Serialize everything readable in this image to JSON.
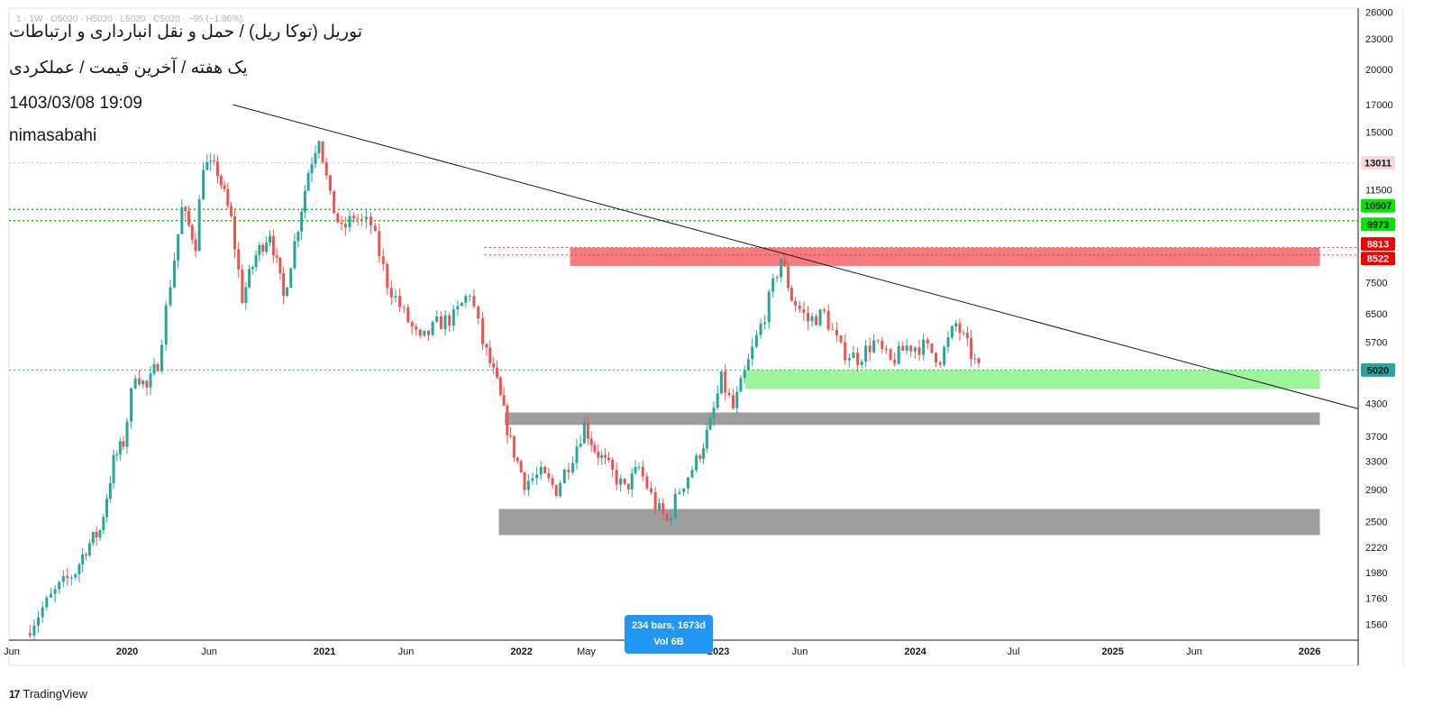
{
  "header": {
    "ohlc_line": "1 · 1W · O5020 · H5020 · L5020 · C5020 · −95 (−1.86%)",
    "title": "توریل (توکا ریل) / حمل و نقل انبارداری و ارتباطات",
    "subtitle": "یک هفته / آخرین قیمت / عملکردی",
    "datetime": "1403/03/08 19:09",
    "author": "nimasabahi"
  },
  "range_box": {
    "line1": "234 bars, 1673d",
    "line2": "Vol 6B"
  },
  "brand": {
    "logo": "17",
    "name": "TradingView"
  },
  "colors": {
    "up": "#26a69a",
    "down": "#ef5350",
    "trend": "#131722",
    "resistance": "#f23645",
    "support": "#00c853",
    "zone_gray": "#9e9e9e",
    "zone_red": "#f77c80",
    "zone_green": "#9df59a"
  },
  "chart_data": {
    "type": "candlestick",
    "title": "توریل (توکا ریل) / حمل و نقل انبارداری و ارتباطات",
    "x_range": [
      "2019-05-27",
      "2026-04-01"
    ],
    "y_range": [
      1450,
      26500
    ],
    "y_scale": "log",
    "y_ticks": [
      26000,
      23000,
      20000,
      17000,
      15000,
      11500,
      7500,
      6500,
      5700,
      4300,
      3700,
      3300,
      2900,
      2500,
      2220,
      1980,
      1760,
      1560
    ],
    "x_ticks": [
      {
        "label": "Jun",
        "date": "2019-06-01"
      },
      {
        "label": "2020",
        "date": "2020-01-01"
      },
      {
        "label": "Jun",
        "date": "2020-06-01"
      },
      {
        "label": "2021",
        "date": "2021-01-01"
      },
      {
        "label": "Jun",
        "date": "2021-06-01"
      },
      {
        "label": "2022",
        "date": "2022-01-01"
      },
      {
        "label": "May",
        "date": "2022-05-01"
      },
      {
        "label": "2023",
        "date": "2023-01-01"
      },
      {
        "label": "Jun",
        "date": "2023-06-01"
      },
      {
        "label": "2024",
        "date": "2024-01-01"
      },
      {
        "label": "Jul",
        "date": "2024-07-01"
      },
      {
        "label": "2025",
        "date": "2025-01-01"
      },
      {
        "label": "Jun",
        "date": "2025-06-01"
      },
      {
        "label": "2026",
        "date": "2026-01-01"
      }
    ],
    "price_labels": [
      {
        "value": 13011,
        "text": "13011",
        "bg": "#f8d7d7",
        "fg": "#131722"
      },
      {
        "value": 10507,
        "text": "10507",
        "bg": "#00e600",
        "fg": "#131722"
      },
      {
        "value": 9973,
        "text": "9973",
        "bg": "#00e600",
        "fg": "#131722"
      },
      {
        "value": 8813,
        "text": "8813",
        "bg": "#f00000",
        "fg": "#ffffff"
      },
      {
        "value": 8522,
        "text": "8522",
        "bg": "#f00000",
        "fg": "#ffffff"
      },
      {
        "value": 5020,
        "text": "5020",
        "bg": "#26a69a",
        "fg": "#131722"
      }
    ],
    "horizontal_lines": [
      {
        "value": 13011,
        "color": "#f4b0b0",
        "from": "2019-05-27"
      },
      {
        "value": 10507,
        "color": "#00c800",
        "from": "2019-05-27"
      },
      {
        "value": 9973,
        "color": "#00c800",
        "from": "2019-05-27"
      },
      {
        "value": 8813,
        "color": "#e53935",
        "from": "2021-10-25"
      },
      {
        "value": 8522,
        "color": "#e53935",
        "from": "2021-10-25"
      },
      {
        "value": 5020,
        "color": "#26a69a",
        "from": "2019-05-27"
      }
    ],
    "zones": [
      {
        "from": "2022-04-01",
        "to": "2026-01-20",
        "low": 8100,
        "high": 8813,
        "color": "#f77c80"
      },
      {
        "from": "2023-02-20",
        "to": "2026-01-20",
        "low": 4600,
        "high": 5020,
        "color": "#9df59a"
      },
      {
        "from": "2021-12-01",
        "to": "2026-01-20",
        "low": 3900,
        "high": 4130,
        "color": "#9e9e9e"
      },
      {
        "from": "2021-11-20",
        "to": "2026-01-20",
        "low": 2350,
        "high": 2650,
        "color": "#9e9e9e"
      }
    ],
    "trendline": {
      "from": {
        "date": "2020-07-15",
        "value": 17000
      },
      "to": {
        "date": "2026-04-01",
        "value": 4200
      }
    },
    "series": [
      {
        "name": "Close (weekly, approximate)",
        "points": [
          {
            "date": "2019-07-01",
            "value": 1500
          },
          {
            "date": "2019-08-01",
            "value": 1680
          },
          {
            "date": "2019-09-01",
            "value": 1850
          },
          {
            "date": "2019-10-01",
            "value": 1990
          },
          {
            "date": "2019-10-20",
            "value": 2220
          },
          {
            "date": "2019-11-15",
            "value": 2400
          },
          {
            "date": "2019-12-10",
            "value": 3300
          },
          {
            "date": "2019-12-28",
            "value": 3600
          },
          {
            "date": "2020-01-20",
            "value": 5000
          },
          {
            "date": "2020-02-10",
            "value": 4600
          },
          {
            "date": "2020-03-01",
            "value": 5200
          },
          {
            "date": "2020-03-25",
            "value": 7500
          },
          {
            "date": "2020-04-15",
            "value": 10500
          },
          {
            "date": "2020-05-10",
            "value": 9000
          },
          {
            "date": "2020-05-25",
            "value": 13000
          },
          {
            "date": "2020-06-20",
            "value": 12500
          },
          {
            "date": "2020-07-15",
            "value": 10000
          },
          {
            "date": "2020-08-05",
            "value": 7000
          },
          {
            "date": "2020-08-30",
            "value": 8500
          },
          {
            "date": "2020-09-25",
            "value": 9500
          },
          {
            "date": "2020-10-20",
            "value": 7000
          },
          {
            "date": "2020-11-10",
            "value": 9000
          },
          {
            "date": "2020-12-05",
            "value": 12500
          },
          {
            "date": "2020-12-25",
            "value": 14800
          },
          {
            "date": "2021-01-15",
            "value": 11000
          },
          {
            "date": "2021-02-05",
            "value": 9500
          },
          {
            "date": "2021-02-28",
            "value": 10200
          },
          {
            "date": "2021-03-15",
            "value": 9900
          },
          {
            "date": "2021-04-01",
            "value": 9800
          },
          {
            "date": "2021-05-01",
            "value": 7500
          },
          {
            "date": "2021-06-01",
            "value": 6500
          },
          {
            "date": "2021-07-01",
            "value": 5700
          },
          {
            "date": "2021-08-01",
            "value": 6200
          },
          {
            "date": "2021-09-01",
            "value": 6400
          },
          {
            "date": "2021-10-01",
            "value": 7200
          },
          {
            "date": "2021-10-25",
            "value": 5700
          },
          {
            "date": "2021-11-20",
            "value": 4700
          },
          {
            "date": "2021-12-15",
            "value": 3600
          },
          {
            "date": "2022-01-10",
            "value": 3000
          },
          {
            "date": "2022-02-10",
            "value": 3100
          },
          {
            "date": "2022-03-10",
            "value": 2900
          },
          {
            "date": "2022-04-10",
            "value": 3400
          },
          {
            "date": "2022-05-01",
            "value": 3900
          },
          {
            "date": "2022-05-20",
            "value": 3500
          },
          {
            "date": "2022-06-15",
            "value": 3200
          },
          {
            "date": "2022-07-15",
            "value": 2900
          },
          {
            "date": "2022-08-10",
            "value": 3200
          },
          {
            "date": "2022-09-10",
            "value": 2700
          },
          {
            "date": "2022-10-01",
            "value": 2500
          },
          {
            "date": "2022-10-25",
            "value": 2900
          },
          {
            "date": "2022-11-25",
            "value": 3300
          },
          {
            "date": "2022-12-20",
            "value": 3900
          },
          {
            "date": "2023-01-10",
            "value": 4800
          },
          {
            "date": "2023-02-01",
            "value": 4200
          },
          {
            "date": "2023-03-01",
            "value": 5200
          },
          {
            "date": "2023-04-01",
            "value": 6500
          },
          {
            "date": "2023-05-01",
            "value": 8400
          },
          {
            "date": "2023-05-20",
            "value": 7000
          },
          {
            "date": "2023-06-20",
            "value": 6300
          },
          {
            "date": "2023-07-20",
            "value": 6500
          },
          {
            "date": "2023-08-20",
            "value": 5500
          },
          {
            "date": "2023-09-20",
            "value": 5300
          },
          {
            "date": "2023-10-20",
            "value": 5700
          },
          {
            "date": "2023-11-20",
            "value": 5200
          },
          {
            "date": "2023-12-20",
            "value": 5600
          },
          {
            "date": "2024-01-20",
            "value": 5600
          },
          {
            "date": "2024-02-20",
            "value": 5300
          },
          {
            "date": "2024-03-20",
            "value": 6200
          },
          {
            "date": "2024-04-10",
            "value": 5600
          },
          {
            "date": "2024-05-01",
            "value": 5020
          }
        ]
      }
    ]
  }
}
